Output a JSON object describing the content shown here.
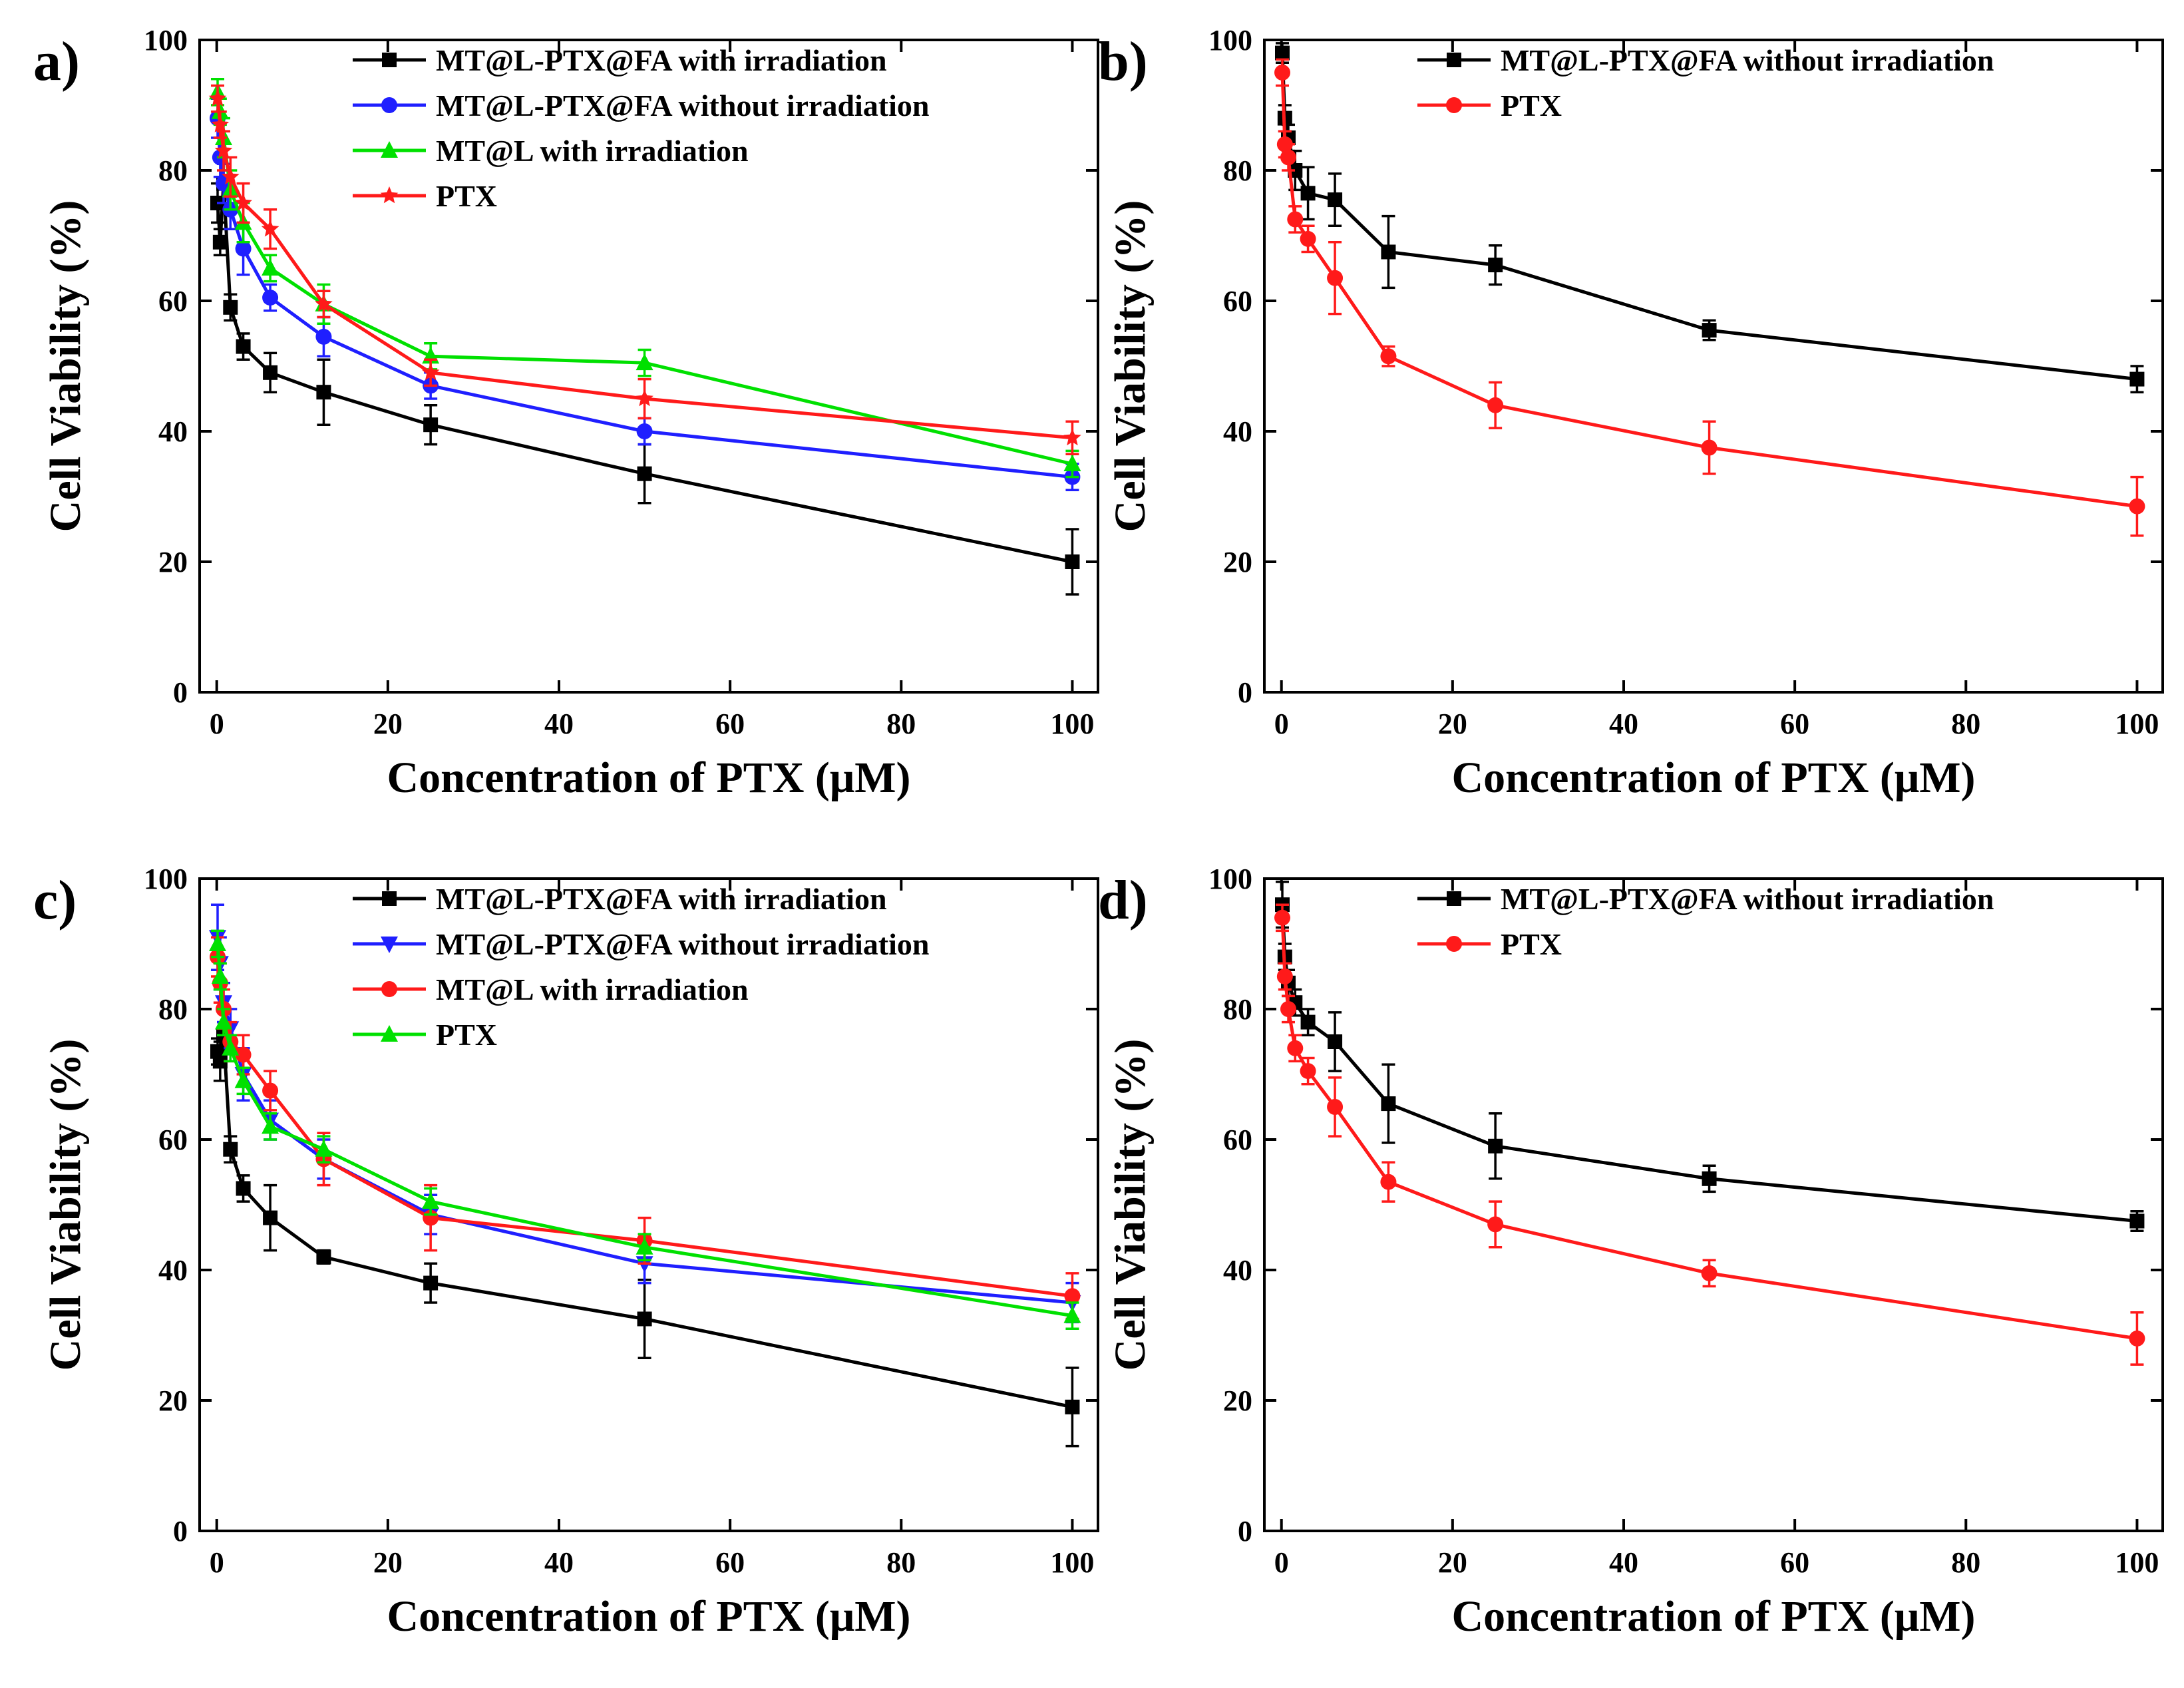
{
  "figure": {
    "background": "#ffffff"
  },
  "chart_data": [
    {
      "panel": "a)",
      "type": "line",
      "xlabel": "Concentration of PTX (μM)",
      "ylabel": "Cell Viability (%)",
      "xlim": [
        -2,
        103
      ],
      "ylim": [
        0,
        100
      ],
      "xticks": [
        0,
        20,
        40,
        60,
        80,
        100
      ],
      "yticks": [
        0,
        20,
        40,
        60,
        80,
        100
      ],
      "legend_position": "top-right",
      "x": [
        0.1,
        0.4,
        0.8,
        1.6,
        3.1,
        6.25,
        12.5,
        25,
        50,
        100
      ],
      "series": [
        {
          "name": "MT@L-PTX@FA with irradiation",
          "color": "#000000",
          "marker": "square",
          "values": [
            75,
            69,
            78,
            59,
            53,
            49,
            46,
            41,
            33.5,
            20
          ],
          "errors": [
            3,
            2,
            3,
            2,
            2,
            3,
            5,
            3,
            4.5,
            5
          ]
        },
        {
          "name": "MT@L-PTX@FA without irradiation",
          "color": "#1f1fff",
          "marker": "circle",
          "values": [
            88,
            82,
            78,
            74,
            68,
            60.5,
            54.5,
            47,
            40,
            33
          ],
          "errors": [
            3,
            3,
            3,
            3,
            4,
            2,
            3,
            2,
            2,
            2
          ]
        },
        {
          "name": "MT@L with irradiation",
          "color": "#00e000",
          "marker": "triangle-up",
          "values": [
            92,
            89,
            85,
            77,
            72,
            65,
            59.5,
            51.5,
            50.5,
            35
          ],
          "errors": [
            2,
            2,
            3,
            3,
            3,
            2,
            3,
            2,
            2,
            2
          ]
        },
        {
          "name": "PTX",
          "color": "#ff1a1a",
          "marker": "star",
          "values": [
            91,
            87,
            83,
            79,
            75,
            71,
            59.5,
            49,
            45,
            39
          ],
          "errors": [
            2,
            2,
            3,
            3,
            3,
            3,
            2,
            2,
            3,
            2.5
          ]
        }
      ]
    },
    {
      "panel": "b)",
      "type": "line",
      "xlabel": "Concentration of PTX (μM)",
      "ylabel": "Cell Viability (%)",
      "xlim": [
        -2,
        103
      ],
      "ylim": [
        0,
        100
      ],
      "xticks": [
        0,
        20,
        40,
        60,
        80,
        100
      ],
      "yticks": [
        0,
        20,
        40,
        60,
        80,
        100
      ],
      "legend_position": "top-right",
      "x": [
        0.1,
        0.4,
        0.8,
        1.6,
        3.1,
        6.25,
        12.5,
        25,
        50,
        100
      ],
      "series": [
        {
          "name": "MT@L-PTX@FA without irradiation",
          "color": "#000000",
          "marker": "square",
          "values": [
            98,
            88,
            85,
            80,
            76.5,
            75.5,
            67.5,
            65.5,
            55.5,
            48
          ],
          "errors": [
            1.5,
            2,
            2,
            3,
            4,
            4,
            5.5,
            3,
            1.5,
            2
          ]
        },
        {
          "name": "PTX",
          "color": "#ff1a1a",
          "marker": "circle",
          "values": [
            95,
            84,
            82,
            72.5,
            69.5,
            63.5,
            51.5,
            44,
            37.5,
            28.5
          ],
          "errors": [
            2,
            2,
            2,
            2,
            2,
            5.5,
            1.5,
            3.5,
            4,
            4.5
          ]
        }
      ]
    },
    {
      "panel": "c)",
      "type": "line",
      "xlabel": "Concentration of PTX (μM)",
      "ylabel": "Cell Viability (%)",
      "xlim": [
        -2,
        103
      ],
      "ylim": [
        0,
        100
      ],
      "xticks": [
        0,
        20,
        40,
        60,
        80,
        100
      ],
      "yticks": [
        0,
        20,
        40,
        60,
        80,
        100
      ],
      "legend_position": "top-right",
      "x": [
        0.1,
        0.4,
        0.8,
        1.6,
        3.1,
        6.25,
        12.5,
        25,
        50,
        100
      ],
      "series": [
        {
          "name": "MT@L-PTX@FA with irradiation",
          "color": "#000000",
          "marker": "square",
          "values": [
            73.5,
            72,
            76,
            58.5,
            52.5,
            48,
            42,
            38,
            32.5,
            19
          ],
          "errors": [
            2,
            3,
            2,
            2,
            2,
            5,
            1,
            3,
            6,
            6
          ]
        },
        {
          "name": "MT@L-PTX@FA without irradiation",
          "color": "#1f1fff",
          "marker": "triangle-down",
          "values": [
            91,
            87,
            81,
            77,
            70,
            63,
            57,
            48.5,
            41,
            35
          ],
          "errors": [
            5,
            4,
            3,
            3,
            4,
            3,
            3,
            3,
            3,
            3
          ]
        },
        {
          "name": "MT@L with irradiation",
          "color": "#ff1a1a",
          "marker": "circle",
          "values": [
            88,
            84,
            80,
            75,
            73,
            67.5,
            57,
            48,
            44.5,
            36
          ],
          "errors": [
            3,
            3,
            3,
            3,
            3,
            3,
            4,
            5,
            3.5,
            3.5
          ]
        },
        {
          "name": "PTX",
          "color": "#00e000",
          "marker": "triangle-up",
          "values": [
            90,
            85,
            78,
            74,
            69,
            62,
            58.5,
            50.5,
            43.5,
            33
          ],
          "errors": [
            2,
            2,
            2,
            2,
            2,
            2,
            2,
            2,
            2,
            2
          ]
        }
      ]
    },
    {
      "panel": "d)",
      "type": "line",
      "xlabel": "Concentration of PTX (μM)",
      "ylabel": "Cell Viability (%)",
      "xlim": [
        -2,
        103
      ],
      "ylim": [
        0,
        100
      ],
      "xticks": [
        0,
        20,
        40,
        60,
        80,
        100
      ],
      "yticks": [
        0,
        20,
        40,
        60,
        80,
        100
      ],
      "legend_position": "top-right",
      "x": [
        0.1,
        0.4,
        0.8,
        1.6,
        3.1,
        6.25,
        12.5,
        25,
        50,
        100
      ],
      "series": [
        {
          "name": "MT@L-PTX@FA without irradiation",
          "color": "#000000",
          "marker": "square",
          "values": [
            96,
            88,
            84,
            81,
            78,
            75,
            65.5,
            59,
            54,
            47.5
          ],
          "errors": [
            3.5,
            2,
            2,
            2,
            2,
            4.5,
            6,
            5,
            2,
            1.5
          ]
        },
        {
          "name": "PTX",
          "color": "#ff1a1a",
          "marker": "circle",
          "values": [
            94,
            85,
            80,
            74,
            70.5,
            65,
            53.5,
            47,
            39.5,
            29.5
          ],
          "errors": [
            2,
            2,
            2,
            2,
            2,
            4.5,
            3,
            3.5,
            2,
            4
          ]
        }
      ]
    }
  ]
}
